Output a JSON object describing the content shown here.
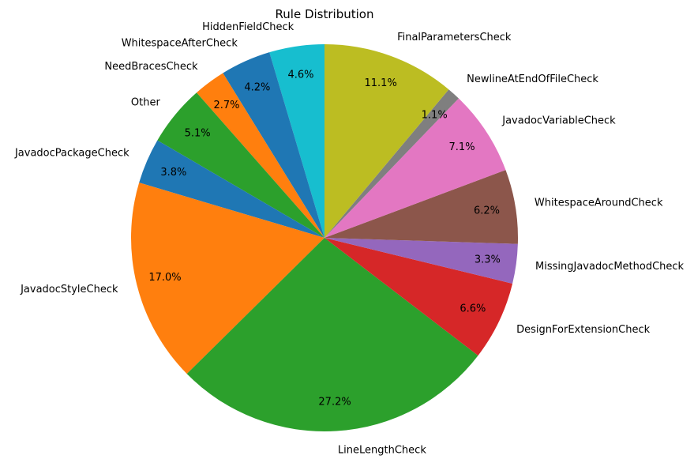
{
  "chart_data": {
    "type": "pie",
    "title": "Rule Distribution",
    "start_angle_deg": 90,
    "direction": "counterclockwise",
    "slices": [
      {
        "label": "HiddenFieldCheck",
        "value": 4.6,
        "pct_label": "4.6%",
        "color": "#17becf"
      },
      {
        "label": "WhitespaceAfterCheck",
        "value": 4.2,
        "pct_label": "4.2%",
        "color": "#1f77b4"
      },
      {
        "label": "NeedBracesCheck",
        "value": 2.7,
        "pct_label": "2.7%",
        "color": "#ff7f0e"
      },
      {
        "label": "Other",
        "value": 5.1,
        "pct_label": "5.1%",
        "color": "#2ca02c"
      },
      {
        "label": "JavadocPackageCheck",
        "value": 3.8,
        "pct_label": "3.8%",
        "color": "#1f77b4"
      },
      {
        "label": "JavadocStyleCheck",
        "value": 17.0,
        "pct_label": "17.0%",
        "color": "#ff7f0e"
      },
      {
        "label": "LineLengthCheck",
        "value": 27.2,
        "pct_label": "27.2%",
        "color": "#2ca02c"
      },
      {
        "label": "DesignForExtensionCheck",
        "value": 6.6,
        "pct_label": "6.6%",
        "color": "#d62728"
      },
      {
        "label": "MissingJavadocMethodCheck",
        "value": 3.3,
        "pct_label": "3.3%",
        "color": "#9467bd"
      },
      {
        "label": "WhitespaceAroundCheck",
        "value": 6.2,
        "pct_label": "6.2%",
        "color": "#8c564b"
      },
      {
        "label": "JavadocVariableCheck",
        "value": 7.1,
        "pct_label": "7.1%",
        "color": "#e377c2"
      },
      {
        "label": "NewlineAtEndOfFileCheck",
        "value": 1.1,
        "pct_label": "1.1%",
        "color": "#7f7f7f"
      },
      {
        "label": "FinalParametersCheck",
        "value": 11.1,
        "pct_label": "11.1%",
        "color": "#bcbd22"
      }
    ]
  }
}
